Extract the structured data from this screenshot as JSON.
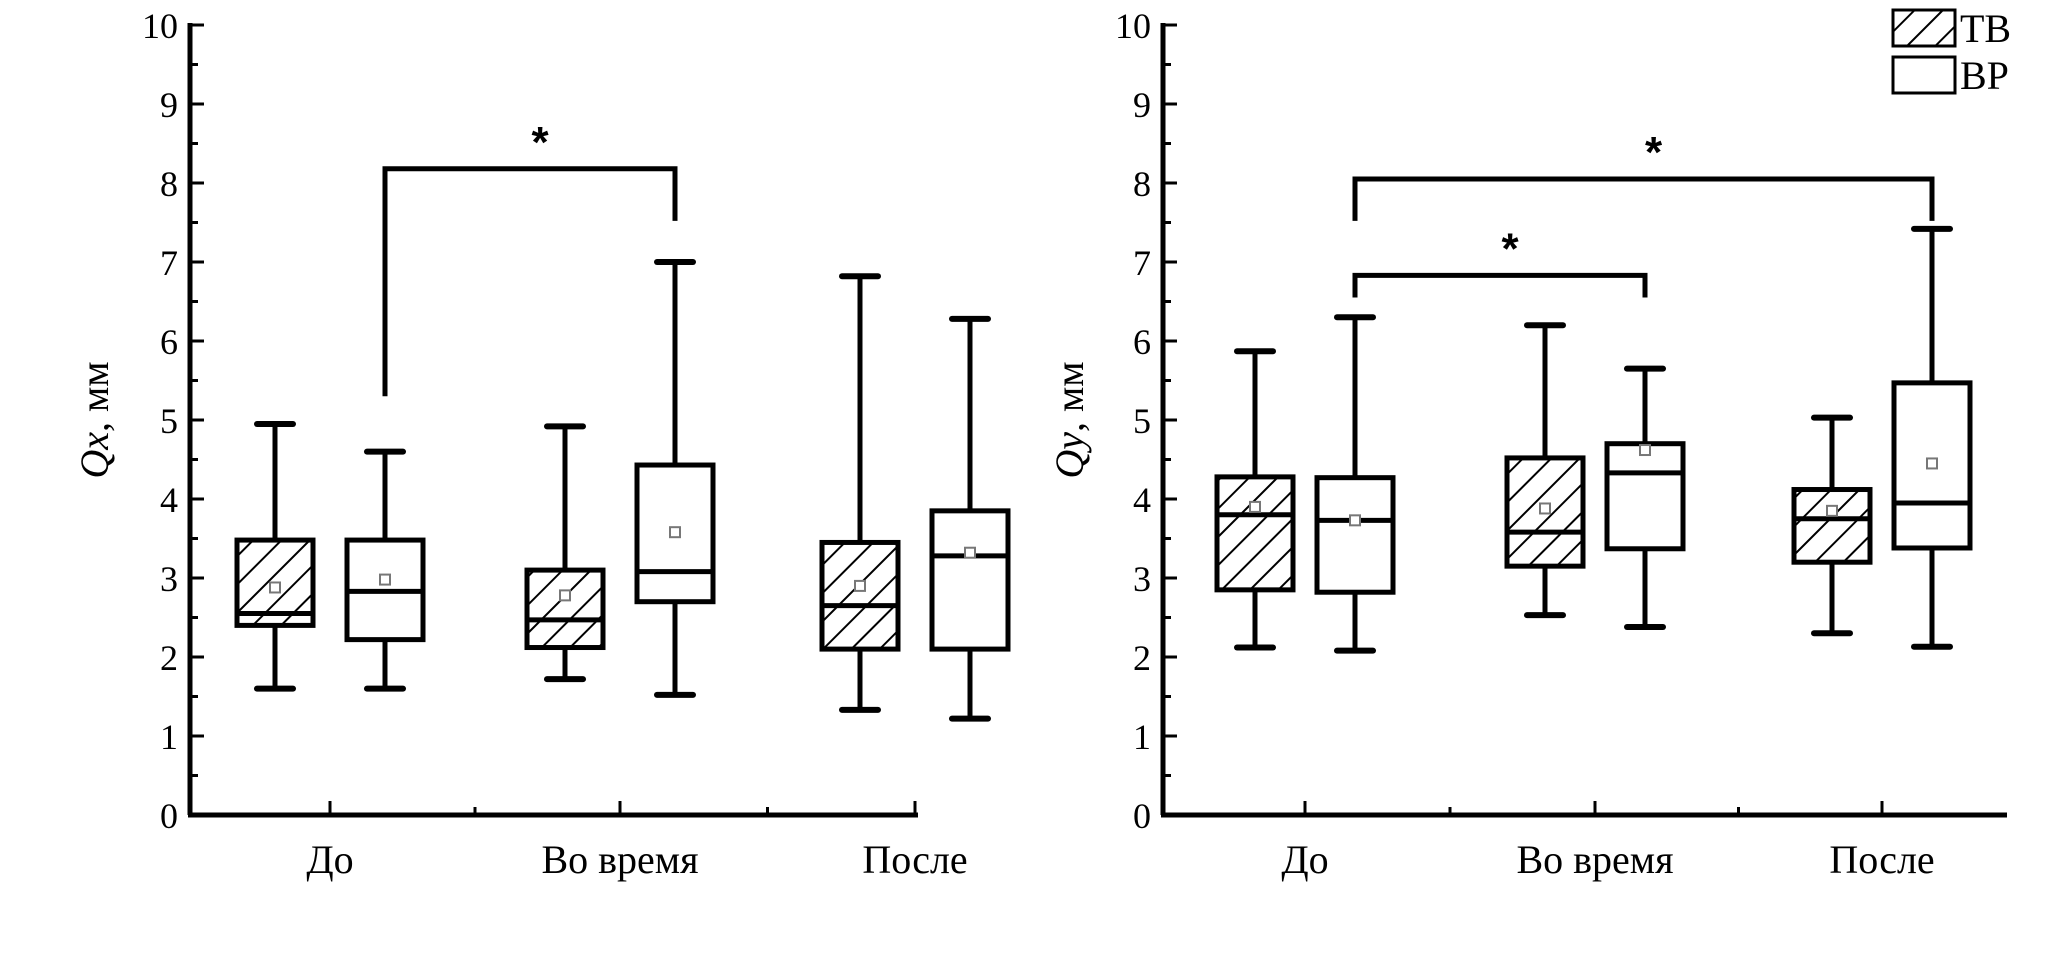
{
  "legend": [
    {
      "label": "ТВ",
      "pattern": "hatched"
    },
    {
      "label": "ВР",
      "pattern": "open"
    }
  ],
  "colors": {
    "ink": "#000000",
    "mean_marker": "#777777",
    "background": "#ffffff"
  },
  "chart_data": [
    {
      "type": "box",
      "ylabel_var": "Qx",
      "ylabel_unit": ", мм",
      "ylim": [
        0,
        10
      ],
      "yticks": [
        "0",
        "1",
        "2",
        "3",
        "4",
        "5",
        "6",
        "7",
        "8",
        "9",
        "10"
      ],
      "categories": [
        "До",
        "Во время",
        "После"
      ],
      "series": [
        {
          "name": "ТВ",
          "pattern": "hatched",
          "boxes": [
            {
              "min": 1.6,
              "q1": 2.4,
              "median": 2.55,
              "q3": 3.48,
              "max": 4.95,
              "mean": 2.88
            },
            {
              "min": 1.72,
              "q1": 2.12,
              "median": 2.47,
              "q3": 3.1,
              "max": 4.92,
              "mean": 2.78
            },
            {
              "min": 1.33,
              "q1": 2.1,
              "median": 2.65,
              "q3": 3.45,
              "max": 6.82,
              "mean": 2.9
            }
          ]
        },
        {
          "name": "ВР",
          "pattern": "open",
          "boxes": [
            {
              "min": 1.6,
              "q1": 2.22,
              "median": 2.83,
              "q3": 3.48,
              "max": 4.6,
              "mean": 2.98
            },
            {
              "min": 1.52,
              "q1": 2.7,
              "median": 3.08,
              "q3": 4.43,
              "max": 7.0,
              "mean": 3.58
            },
            {
              "min": 1.22,
              "q1": 2.1,
              "median": 3.28,
              "q3": 3.85,
              "max": 6.28,
              "mean": 3.32
            }
          ]
        }
      ],
      "significance": [
        {
          "from_category": 0,
          "from_series": 1,
          "to_category": 1,
          "to_series": 1,
          "level": 8.18,
          "from_bottom": 5.3,
          "to_bottom": 7.52,
          "label": "*"
        }
      ]
    },
    {
      "type": "box",
      "ylabel_var": "Qy",
      "ylabel_unit": ", мм",
      "ylim": [
        0,
        10
      ],
      "yticks": [
        "0",
        "1",
        "2",
        "3",
        "4",
        "5",
        "6",
        "7",
        "8",
        "9",
        "10"
      ],
      "categories": [
        "До",
        "Во время",
        "После"
      ],
      "series": [
        {
          "name": "ТВ",
          "pattern": "hatched",
          "boxes": [
            {
              "min": 2.12,
              "q1": 2.85,
              "median": 3.8,
              "q3": 4.28,
              "max": 5.87,
              "mean": 3.9
            },
            {
              "min": 2.53,
              "q1": 3.15,
              "median": 3.58,
              "q3": 4.52,
              "max": 6.2,
              "mean": 3.88
            },
            {
              "min": 2.3,
              "q1": 3.2,
              "median": 3.75,
              "q3": 4.12,
              "max": 5.03,
              "mean": 3.85
            }
          ]
        },
        {
          "name": "ВР",
          "pattern": "open",
          "boxes": [
            {
              "min": 2.08,
              "q1": 2.82,
              "median": 3.73,
              "q3": 4.27,
              "max": 6.3,
              "mean": 3.73
            },
            {
              "min": 2.38,
              "q1": 3.37,
              "median": 4.33,
              "q3": 4.7,
              "max": 5.65,
              "mean": 4.62
            },
            {
              "min": 2.13,
              "q1": 3.38,
              "median": 3.95,
              "q3": 5.47,
              "max": 7.42,
              "mean": 4.45
            }
          ]
        }
      ],
      "significance": [
        {
          "from_category": 0,
          "from_series": 1,
          "to_category": 2,
          "to_series": 1,
          "level": 8.05,
          "from_bottom": 7.52,
          "to_bottom": 7.52,
          "label": "*"
        },
        {
          "from_category": 0,
          "from_series": 1,
          "to_category": 1,
          "to_series": 1,
          "level": 6.83,
          "from_bottom": 6.55,
          "to_bottom": 6.55,
          "label": "*"
        }
      ]
    }
  ]
}
